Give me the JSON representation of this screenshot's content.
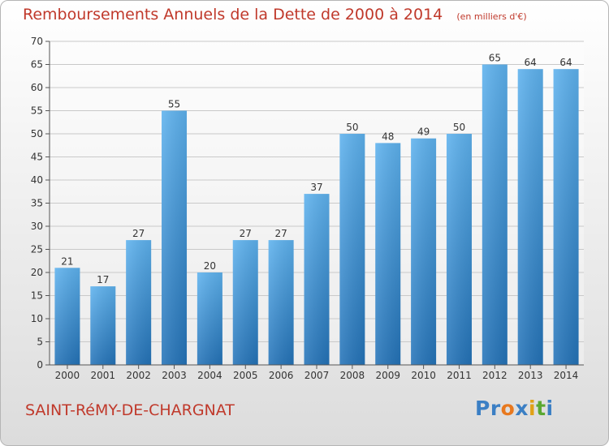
{
  "chart_data": {
    "type": "bar",
    "title": "Remboursements Annuels de la Dette de 2000 à 2014",
    "subtitle": "(en milliers d'€)",
    "xlabel": "",
    "ylabel": "",
    "categories": [
      "2000",
      "2001",
      "2002",
      "2003",
      "2004",
      "2005",
      "2006",
      "2007",
      "2008",
      "2009",
      "2010",
      "2011",
      "2012",
      "2013",
      "2014"
    ],
    "values": [
      21,
      17,
      27,
      55,
      20,
      27,
      27,
      37,
      50,
      48,
      49,
      50,
      65,
      64,
      64
    ],
    "ylim": [
      0,
      70
    ],
    "yticks": [
      0,
      5,
      10,
      15,
      20,
      25,
      30,
      35,
      40,
      45,
      50,
      55,
      60,
      65,
      70
    ],
    "grid": true,
    "bar_color": "#3c8fd4"
  },
  "footer": {
    "commune": "SAINT-RéMY-DE-CHARGNAT",
    "logo_letters": [
      "P",
      "r",
      "o",
      "x",
      "i",
      "t",
      "i"
    ]
  },
  "colors": {
    "title": "#c0392b",
    "logo": [
      "#3b7fc4",
      "#3b7fc4",
      "#e8791f",
      "#3b7fc4",
      "#e0a116",
      "#5aa832",
      "#3b7fc4"
    ]
  }
}
